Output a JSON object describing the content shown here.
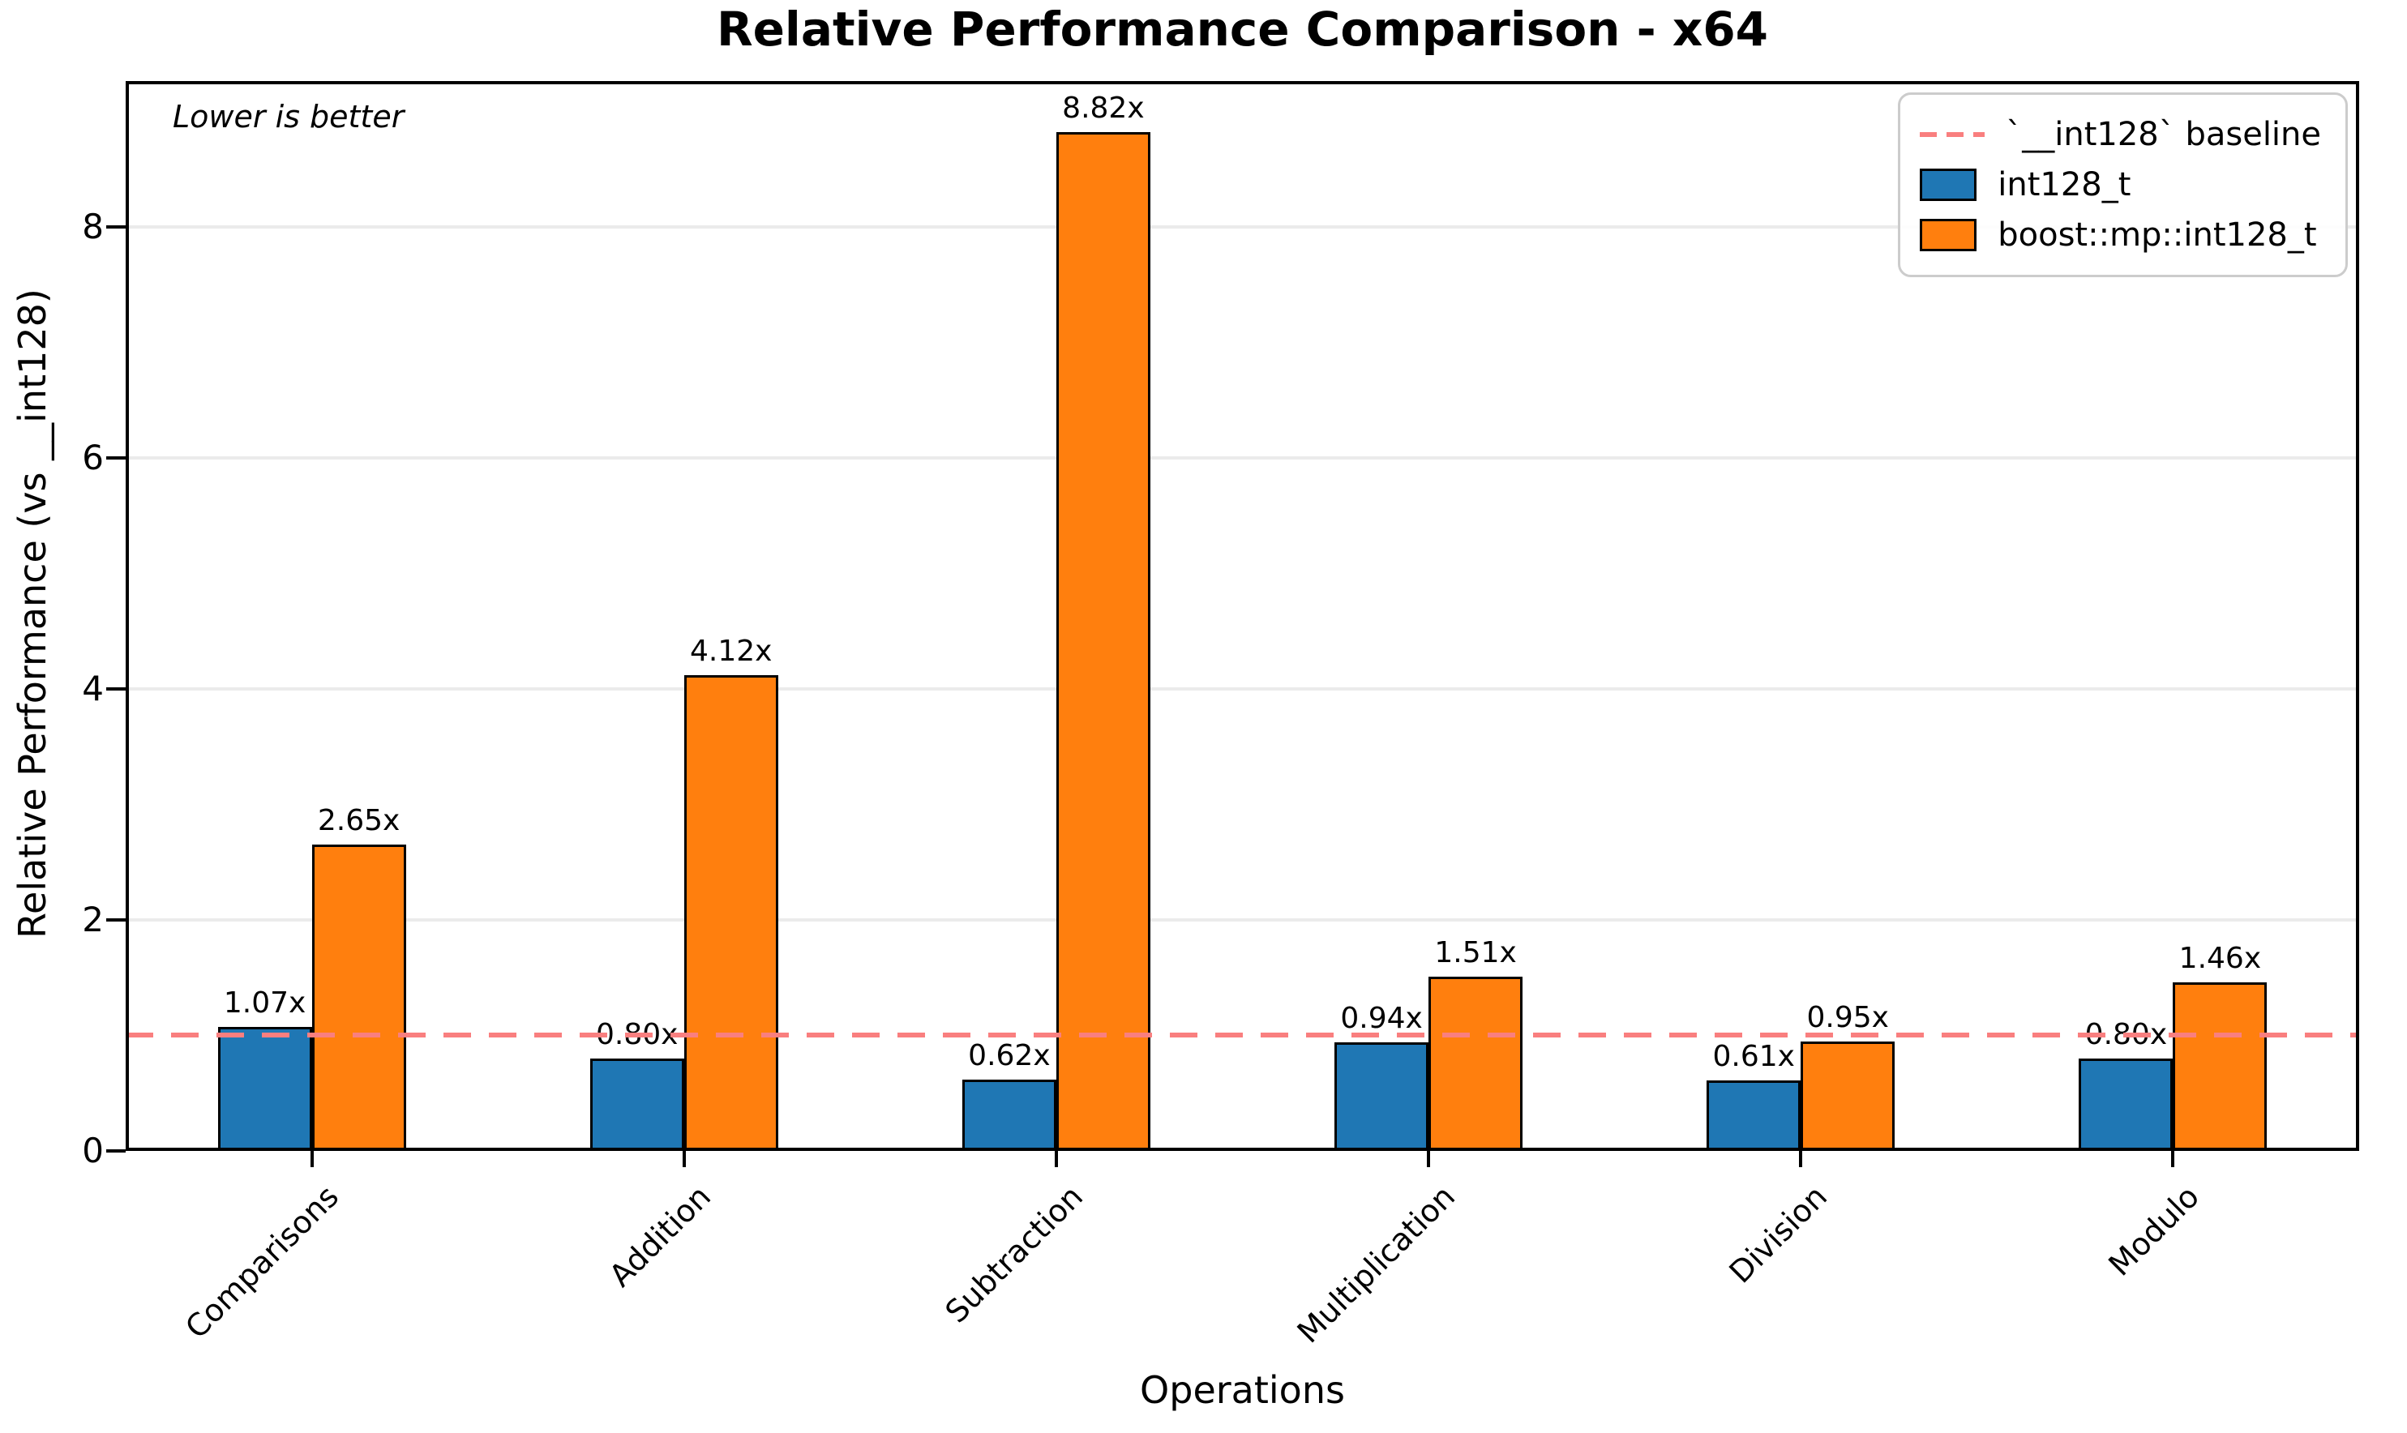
{
  "chart_data": {
    "type": "bar",
    "title": "Relative Performance Comparison - x64",
    "xlabel": "Operations",
    "ylabel": "Relative Performance (vs __int128)",
    "annotation": "Lower is better",
    "categories": [
      "Comparisons",
      "Addition",
      "Subtraction",
      "Multiplication",
      "Division",
      "Modulo"
    ],
    "series": [
      {
        "name": "int128_t",
        "color": "#1f77b4",
        "values": [
          1.07,
          0.8,
          0.62,
          0.94,
          0.61,
          0.8
        ],
        "value_labels": [
          "1.07x",
          "0.80x",
          "0.62x",
          "0.94x",
          "0.61x",
          "0.80x"
        ]
      },
      {
        "name": "boost::mp::int128_t",
        "color": "#ff7f0e",
        "values": [
          2.65,
          4.12,
          8.82,
          1.51,
          0.95,
          1.46
        ],
        "value_labels": [
          "2.65x",
          "4.12x",
          "8.82x",
          "1.51x",
          "0.95x",
          "1.46x"
        ]
      }
    ],
    "baseline": {
      "value": 1,
      "label": "`__int128` baseline",
      "color": "#f97f7f"
    },
    "yticks": [
      0,
      2,
      4,
      6,
      8
    ],
    "ytick_labels": [
      "0",
      "2",
      "4",
      "6",
      "8"
    ],
    "ylim": [
      0,
      9.26
    ],
    "grid": true,
    "legend_position": "upper right"
  },
  "colors": {
    "series_blue": "#1f77b4",
    "series_orange": "#ff7f0e",
    "baseline_red": "#f97f7f",
    "gridline": "#ebebeb",
    "legend_border": "#cccccc",
    "text": "#000000"
  }
}
